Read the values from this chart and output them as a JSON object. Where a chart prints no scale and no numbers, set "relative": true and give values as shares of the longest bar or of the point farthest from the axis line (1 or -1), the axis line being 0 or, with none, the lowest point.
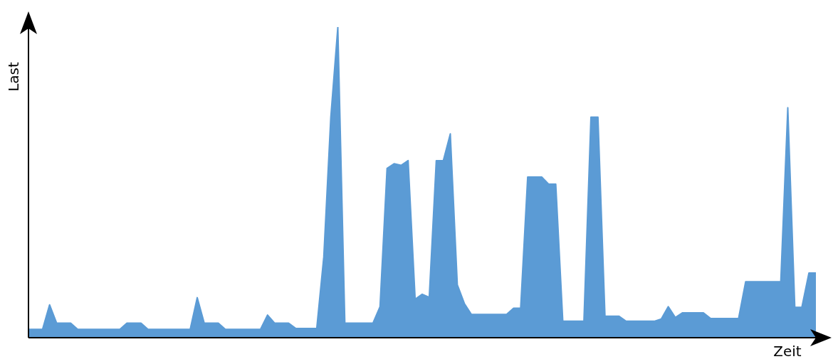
{
  "chart_data": {
    "type": "area",
    "relative": true,
    "xlabel": "Zeit",
    "ylabel": "Last",
    "categories": [
      null,
      null,
      null,
      null,
      null,
      null,
      null,
      null,
      null,
      null,
      null,
      null,
      null,
      null,
      null,
      null,
      null,
      null,
      null,
      null,
      null,
      null,
      null,
      null,
      null,
      null,
      null,
      null,
      null,
      null,
      null,
      null,
      null,
      null,
      null,
      null,
      null,
      null,
      null,
      null,
      null,
      null,
      null,
      null,
      null,
      null,
      null,
      null,
      null,
      null,
      null,
      null,
      null,
      null,
      null,
      null,
      null,
      null,
      null,
      null,
      null,
      null,
      null,
      null,
      null,
      null,
      null,
      null,
      null,
      null,
      null,
      null,
      null,
      null,
      null,
      null,
      null,
      null,
      null,
      null,
      null,
      null,
      null,
      null,
      null,
      null,
      null,
      null,
      null,
      null,
      null,
      null,
      null,
      null,
      null,
      null,
      null,
      null,
      null,
      null,
      null,
      null,
      null,
      null,
      null,
      null,
      null,
      null,
      null,
      null,
      null,
      null,
      null
    ],
    "series": [
      {
        "color": "#5b9bd5",
        "values": [
          0.027,
          0.027,
          0.027,
          0.106,
          0.047,
          0.047,
          0.047,
          0.027,
          0.027,
          0.027,
          0.027,
          0.027,
          0.027,
          0.027,
          0.047,
          0.047,
          0.047,
          0.027,
          0.027,
          0.027,
          0.027,
          0.027,
          0.027,
          0.027,
          0.129,
          0.047,
          0.047,
          0.047,
          0.027,
          0.027,
          0.027,
          0.027,
          0.027,
          0.027,
          0.073,
          0.047,
          0.047,
          0.047,
          0.03,
          0.03,
          0.03,
          0.03,
          0.26,
          0.71,
          1.0,
          0.047,
          0.047,
          0.047,
          0.047,
          0.047,
          0.1,
          0.545,
          0.56,
          0.555,
          0.57,
          0.124,
          0.14,
          0.13,
          0.57,
          0.57,
          0.656,
          0.17,
          0.11,
          0.075,
          0.075,
          0.075,
          0.075,
          0.075,
          0.075,
          0.095,
          0.095,
          0.517,
          0.517,
          0.517,
          0.494,
          0.494,
          0.053,
          0.053,
          0.053,
          0.053,
          0.71,
          0.71,
          0.069,
          0.069,
          0.069,
          0.053,
          0.053,
          0.053,
          0.053,
          0.053,
          0.06,
          0.1,
          0.065,
          0.08,
          0.08,
          0.08,
          0.08,
          0.062,
          0.062,
          0.062,
          0.062,
          0.062,
          0.18,
          0.18,
          0.18,
          0.18,
          0.18,
          0.18,
          0.74,
          0.098,
          0.098,
          0.208,
          0.208
        ]
      }
    ]
  }
}
